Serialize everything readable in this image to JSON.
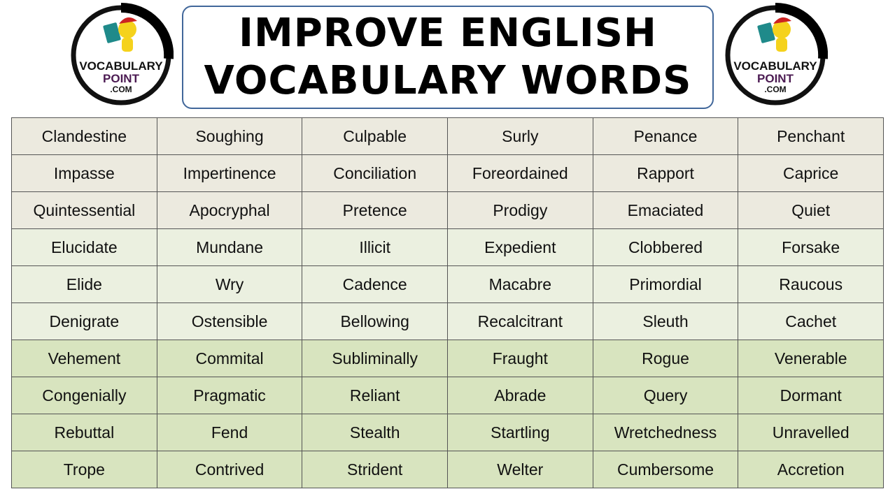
{
  "logo": {
    "text_line1": "VOCABULARY",
    "text_line2": "POINT",
    "text_line3": ".COM"
  },
  "title": {
    "line1": "IMPROVE ENGLISH",
    "line2": "VOCABULARY WORDS",
    "border_color": "#41679a"
  },
  "colors": {
    "group1": "#eceadf",
    "group2": "#ebf0e0",
    "group3": "#d8e4bf"
  },
  "table": {
    "rows": [
      [
        "Clandestine",
        "Soughing",
        "Culpable",
        "Surly",
        "Penance",
        "Penchant"
      ],
      [
        "Impasse",
        "Impertinence",
        "Conciliation",
        "Foreordained",
        "Rapport",
        "Caprice"
      ],
      [
        "Quintessential",
        "Apocryphal",
        "Pretence",
        "Prodigy",
        "Emaciated",
        "Quiet"
      ],
      [
        "Elucidate",
        "Mundane",
        "Illicit",
        "Expedient",
        "Clobbered",
        "Forsake"
      ],
      [
        "Elide",
        "Wry",
        "Cadence",
        "Macabre",
        "Primordial",
        "Raucous"
      ],
      [
        "Denigrate",
        "Ostensible",
        "Bellowing",
        "Recalcitrant",
        "Sleuth",
        "Cachet"
      ],
      [
        "Vehement",
        "Commital",
        "Subliminally",
        "Fraught",
        "Rogue",
        "Venerable"
      ],
      [
        "Congenially",
        "Pragmatic",
        "Reliant",
        "Abrade",
        "Query",
        "Dormant"
      ],
      [
        "Rebuttal",
        "Fend",
        "Stealth",
        "Startling",
        "Wretchedness",
        "Unravelled"
      ],
      [
        "Trope",
        "Contrived",
        "Strident",
        "Welter",
        "Cumbersome",
        "Accretion"
      ]
    ]
  }
}
